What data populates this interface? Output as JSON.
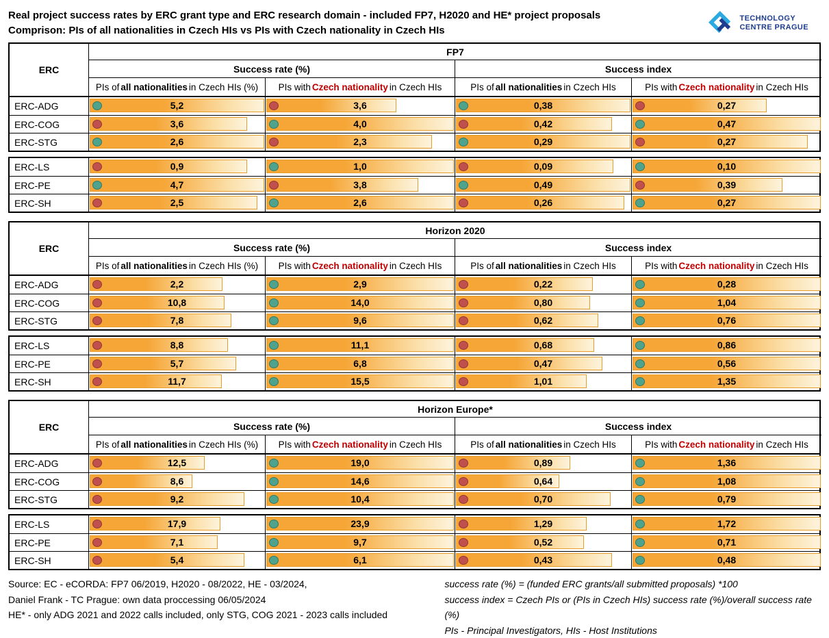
{
  "header": {
    "title_line1": "Real project success rates by ERC grant type and ERC research domain - included FP7, H2020 and HE* project proposals",
    "title_line2": "Comprison: PIs of all nationalities in Czech HIs vs PIs with Czech nationality in Czech HIs",
    "logo_line1": "TECHNOLOGY",
    "logo_line2": "CENTRE PRAGUE"
  },
  "column_headers": {
    "erc": "ERC",
    "success_rate": "Success rate (%)",
    "success_index": "Success index",
    "sr_all": {
      "pre": "PIs of ",
      "em": "all nationalities",
      "post": " in Czech HIs (%)"
    },
    "sr_cz": {
      "pre": "PIs with ",
      "em": "Czech nationality",
      "post": " in Czech HIs"
    },
    "si_all": {
      "pre": "PIs of ",
      "em": "all nationalities",
      "post": " in Czech HIs"
    },
    "si_cz": {
      "pre": "PIs with ",
      "em": "Czech nationality",
      "post": " in Czech HIs"
    }
  },
  "chart_data": {
    "type": "table",
    "title": "Real project success rates by ERC grant type and ERC research domain - included FP7, H2020 and HE* project proposals",
    "subtitle": "Comprison: PIs of all nationalities in Czech HIs vs PIs with Czech nationality in Czech HIs",
    "column_groups": [
      "Success rate (%)",
      "Success index"
    ],
    "columns": [
      "PIs of all nationalities in Czech HIs (%)",
      "PIs with Czech nationality in Czech HIs",
      "PIs of all nationalities in Czech HIs",
      "PIs with Czech nationality in Czech HIs"
    ],
    "dot_legend": {
      "green": "higher value of the pair",
      "red": "lower value of the pair"
    },
    "sections": [
      {
        "program": "FP7",
        "blocks": [
          [
            {
              "label": "ERC-ADG",
              "cells": [
                {
                  "dot": "green",
                  "value": "5,2"
                },
                {
                  "dot": "red",
                  "value": "3,6"
                },
                {
                  "dot": "green",
                  "value": "0,38"
                },
                {
                  "dot": "red",
                  "value": "0,27"
                }
              ]
            },
            {
              "label": "ERC-COG",
              "cells": [
                {
                  "dot": "red",
                  "value": "3,6"
                },
                {
                  "dot": "green",
                  "value": "4,0"
                },
                {
                  "dot": "red",
                  "value": "0,42"
                },
                {
                  "dot": "green",
                  "value": "0,47"
                }
              ]
            },
            {
              "label": "ERC-STG",
              "cells": [
                {
                  "dot": "green",
                  "value": "2,6"
                },
                {
                  "dot": "red",
                  "value": "2,3"
                },
                {
                  "dot": "green",
                  "value": "0,29"
                },
                {
                  "dot": "red",
                  "value": "0,27"
                }
              ]
            }
          ],
          [
            {
              "label": "ERC-LS",
              "cells": [
                {
                  "dot": "red",
                  "value": "0,9"
                },
                {
                  "dot": "green",
                  "value": "1,0"
                },
                {
                  "dot": "red",
                  "value": "0,09"
                },
                {
                  "dot": "green",
                  "value": "0,10"
                }
              ]
            },
            {
              "label": "ERC-PE",
              "cells": [
                {
                  "dot": "green",
                  "value": "4,7"
                },
                {
                  "dot": "red",
                  "value": "3,8"
                },
                {
                  "dot": "green",
                  "value": "0,49"
                },
                {
                  "dot": "red",
                  "value": "0,39"
                }
              ]
            },
            {
              "label": "ERC-SH",
              "cells": [
                {
                  "dot": "red",
                  "value": "2,5"
                },
                {
                  "dot": "green",
                  "value": "2,6"
                },
                {
                  "dot": "red",
                  "value": "0,26"
                },
                {
                  "dot": "green",
                  "value": "0,27"
                }
              ]
            }
          ]
        ]
      },
      {
        "program": "Horizon 2020",
        "blocks": [
          [
            {
              "label": "ERC-ADG",
              "cells": [
                {
                  "dot": "red",
                  "value": "2,2"
                },
                {
                  "dot": "green",
                  "value": "2,9"
                },
                {
                  "dot": "red",
                  "value": "0,22"
                },
                {
                  "dot": "green",
                  "value": "0,28"
                }
              ]
            },
            {
              "label": "ERC-COG",
              "cells": [
                {
                  "dot": "red",
                  "value": "10,8"
                },
                {
                  "dot": "green",
                  "value": "14,0"
                },
                {
                  "dot": "red",
                  "value": "0,80"
                },
                {
                  "dot": "green",
                  "value": "1,04"
                }
              ]
            },
            {
              "label": "ERC-STG",
              "cells": [
                {
                  "dot": "red",
                  "value": "7,8"
                },
                {
                  "dot": "green",
                  "value": "9,6"
                },
                {
                  "dot": "red",
                  "value": "0,62"
                },
                {
                  "dot": "green",
                  "value": "0,76"
                }
              ]
            }
          ],
          [
            {
              "label": "ERC-LS",
              "cells": [
                {
                  "dot": "red",
                  "value": "8,8"
                },
                {
                  "dot": "green",
                  "value": "11,1"
                },
                {
                  "dot": "red",
                  "value": "0,68"
                },
                {
                  "dot": "green",
                  "value": "0,86"
                }
              ]
            },
            {
              "label": "ERC-PE",
              "cells": [
                {
                  "dot": "red",
                  "value": "5,7"
                },
                {
                  "dot": "green",
                  "value": "6,8"
                },
                {
                  "dot": "red",
                  "value": "0,47"
                },
                {
                  "dot": "green",
                  "value": "0,56"
                }
              ]
            },
            {
              "label": "ERC-SH",
              "cells": [
                {
                  "dot": "red",
                  "value": "11,7"
                },
                {
                  "dot": "green",
                  "value": "15,5"
                },
                {
                  "dot": "red",
                  "value": "1,01"
                },
                {
                  "dot": "green",
                  "value": "1,35"
                }
              ]
            }
          ]
        ]
      },
      {
        "program": "Horizon Europe*",
        "blocks": [
          [
            {
              "label": "ERC-ADG",
              "cells": [
                {
                  "dot": "red",
                  "value": "12,5"
                },
                {
                  "dot": "green",
                  "value": "19,0"
                },
                {
                  "dot": "red",
                  "value": "0,89"
                },
                {
                  "dot": "green",
                  "value": "1,36"
                }
              ]
            },
            {
              "label": "ERC-COG",
              "cells": [
                {
                  "dot": "red",
                  "value": "8,6"
                },
                {
                  "dot": "green",
                  "value": "14,6"
                },
                {
                  "dot": "red",
                  "value": "0,64"
                },
                {
                  "dot": "green",
                  "value": "1,08"
                }
              ]
            },
            {
              "label": "ERC-STG",
              "cells": [
                {
                  "dot": "red",
                  "value": "9,2"
                },
                {
                  "dot": "green",
                  "value": "10,4"
                },
                {
                  "dot": "red",
                  "value": "0,70"
                },
                {
                  "dot": "green",
                  "value": "0,79"
                }
              ]
            }
          ],
          [
            {
              "label": "ERC-LS",
              "cells": [
                {
                  "dot": "red",
                  "value": "17,9"
                },
                {
                  "dot": "green",
                  "value": "23,9"
                },
                {
                  "dot": "red",
                  "value": "1,29"
                },
                {
                  "dot": "green",
                  "value": "1,72"
                }
              ]
            },
            {
              "label": "ERC-PE",
              "cells": [
                {
                  "dot": "red",
                  "value": "7,1"
                },
                {
                  "dot": "green",
                  "value": "9,7"
                },
                {
                  "dot": "red",
                  "value": "0,52"
                },
                {
                  "dot": "green",
                  "value": "0,71"
                }
              ]
            },
            {
              "label": "ERC-SH",
              "cells": [
                {
                  "dot": "red",
                  "value": "5,4"
                },
                {
                  "dot": "green",
                  "value": "6,1"
                },
                {
                  "dot": "red",
                  "value": "0,43"
                },
                {
                  "dot": "green",
                  "value": "0,48"
                }
              ]
            }
          ]
        ]
      }
    ]
  },
  "footer": {
    "left": [
      "Source: EC - eCORDA: FP7 06/2019, H2020 - 08/2022, HE - 03/2024,",
      "Daniel Frank - TC Prague: own data proccessing 06/05/2024",
      "HE* - only ADG 2021 and 2022 calls included, only STG, COG 2021 - 2023 calls included"
    ],
    "right": [
      "success rate (%) = (funded ERC grants/all submitted proposals) *100",
      "success index = Czech PIs or (PIs in Czech HIs) success rate (%)/overall success rate (%)",
      "PIs - Principal Investigators, HIs - Host Institutions"
    ]
  },
  "colors": {
    "bar_start": "#F6A637",
    "bar_end": "#FDF3DC",
    "bar_border": "#E89C2C",
    "dot_green": "#4FA38C",
    "dot_red": "#C0504D",
    "accent_red": "#C00000",
    "logo_navy": "#1E3D8F",
    "logo_blue": "#2BA9E0"
  }
}
